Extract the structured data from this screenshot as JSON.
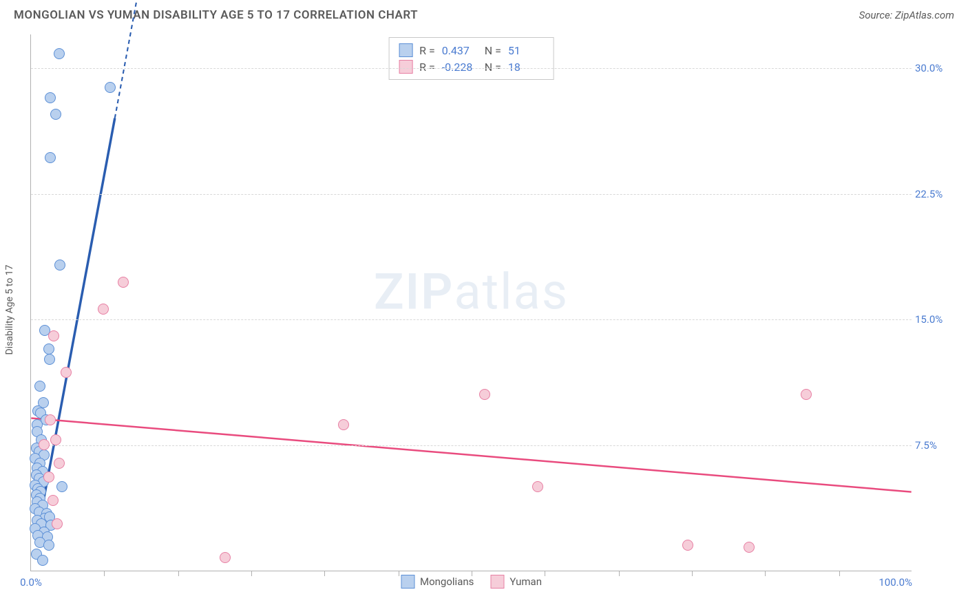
{
  "header": {
    "title": "MONGOLIAN VS YUMAN DISABILITY AGE 5 TO 17 CORRELATION CHART",
    "source": "Source: ZipAtlas.com"
  },
  "watermark": {
    "part1": "ZIP",
    "part2": "atlas"
  },
  "chart": {
    "type": "scatter",
    "ylabel": "Disability Age 5 to 17",
    "background_color": "#ffffff",
    "grid_color": "#d8d8d8",
    "axis_color": "#b0b0b0",
    "tick_label_color": "#4a7bd0",
    "xlim": [
      0,
      100
    ],
    "ylim": [
      0,
      32
    ],
    "x_ticks_major": [
      0,
      100
    ],
    "x_tick_labels": [
      "0.0%",
      "100.0%"
    ],
    "x_ticks_minor": [
      8.3,
      16.7,
      25,
      33.3,
      41.7,
      50,
      58.3,
      66.7,
      75,
      83.3,
      91.7
    ],
    "y_gridlines": [
      7.5,
      15.0,
      22.5,
      30.0
    ],
    "y_tick_labels": [
      "7.5%",
      "15.0%",
      "22.5%",
      "30.0%"
    ],
    "point_radius": 8,
    "point_border_width": 1,
    "series": [
      {
        "name": "Mongolians",
        "fill_color": "#b9d0ee",
        "stroke_color": "#5b8fd6",
        "trend_color": "#2a5db0",
        "trend_width": 3.5,
        "stats": {
          "r_label": "R =",
          "r_value": "0.437",
          "n_label": "N =",
          "n_value": "51"
        },
        "trend_line": {
          "x1": 0.8,
          "y1": 2.5,
          "x2": 9.5,
          "y2": 27.0,
          "x2_dash": 12.5,
          "y2_dash": 35.5
        },
        "points": [
          {
            "x": 3.2,
            "y": 30.8
          },
          {
            "x": 2.2,
            "y": 28.2
          },
          {
            "x": 9.0,
            "y": 28.8
          },
          {
            "x": 2.8,
            "y": 27.2
          },
          {
            "x": 2.2,
            "y": 24.6
          },
          {
            "x": 3.3,
            "y": 18.2
          },
          {
            "x": 1.6,
            "y": 14.3
          },
          {
            "x": 2.0,
            "y": 13.2
          },
          {
            "x": 2.1,
            "y": 12.6
          },
          {
            "x": 1.0,
            "y": 11.0
          },
          {
            "x": 1.4,
            "y": 10.0
          },
          {
            "x": 0.8,
            "y": 9.5
          },
          {
            "x": 1.1,
            "y": 9.4
          },
          {
            "x": 1.7,
            "y": 9.0
          },
          {
            "x": 0.7,
            "y": 8.7
          },
          {
            "x": 0.7,
            "y": 8.3
          },
          {
            "x": 1.2,
            "y": 7.8
          },
          {
            "x": 0.6,
            "y": 7.3
          },
          {
            "x": 0.9,
            "y": 7.1
          },
          {
            "x": 1.5,
            "y": 6.9
          },
          {
            "x": 0.5,
            "y": 6.7
          },
          {
            "x": 1.0,
            "y": 6.4
          },
          {
            "x": 0.7,
            "y": 6.1
          },
          {
            "x": 1.3,
            "y": 5.9
          },
          {
            "x": 0.6,
            "y": 5.7
          },
          {
            "x": 0.9,
            "y": 5.5
          },
          {
            "x": 1.4,
            "y": 5.3
          },
          {
            "x": 0.5,
            "y": 5.1
          },
          {
            "x": 0.8,
            "y": 4.9
          },
          {
            "x": 1.1,
            "y": 4.7
          },
          {
            "x": 3.5,
            "y": 5.0
          },
          {
            "x": 0.6,
            "y": 4.5
          },
          {
            "x": 1.0,
            "y": 4.3
          },
          {
            "x": 0.7,
            "y": 4.1
          },
          {
            "x": 1.3,
            "y": 3.9
          },
          {
            "x": 0.5,
            "y": 3.7
          },
          {
            "x": 0.9,
            "y": 3.5
          },
          {
            "x": 1.8,
            "y": 3.4
          },
          {
            "x": 1.6,
            "y": 3.1
          },
          {
            "x": 2.1,
            "y": 3.2
          },
          {
            "x": 0.7,
            "y": 3.0
          },
          {
            "x": 1.2,
            "y": 2.8
          },
          {
            "x": 2.3,
            "y": 2.7
          },
          {
            "x": 0.5,
            "y": 2.5
          },
          {
            "x": 1.5,
            "y": 2.3
          },
          {
            "x": 0.8,
            "y": 2.1
          },
          {
            "x": 1.9,
            "y": 2.0
          },
          {
            "x": 1.0,
            "y": 1.7
          },
          {
            "x": 2.0,
            "y": 1.5
          },
          {
            "x": 0.6,
            "y": 1.0
          },
          {
            "x": 1.3,
            "y": 0.6
          }
        ]
      },
      {
        "name": "Yuman",
        "fill_color": "#f6cdd9",
        "stroke_color": "#e77fa3",
        "trend_color": "#e94b7e",
        "trend_width": 2.5,
        "stats": {
          "r_label": "R =",
          "r_value": "-0.228",
          "n_label": "N =",
          "n_value": "18"
        },
        "trend_line": {
          "x1": 0,
          "y1": 9.1,
          "x2": 100,
          "y2": 4.7
        },
        "points": [
          {
            "x": 10.5,
            "y": 17.2
          },
          {
            "x": 8.2,
            "y": 15.6
          },
          {
            "x": 2.6,
            "y": 14.0
          },
          {
            "x": 4.0,
            "y": 11.8
          },
          {
            "x": 51.5,
            "y": 10.5
          },
          {
            "x": 88.0,
            "y": 10.5
          },
          {
            "x": 2.2,
            "y": 9.0
          },
          {
            "x": 35.5,
            "y": 8.7
          },
          {
            "x": 2.8,
            "y": 7.8
          },
          {
            "x": 1.5,
            "y": 7.5
          },
          {
            "x": 3.2,
            "y": 6.4
          },
          {
            "x": 2.0,
            "y": 5.6
          },
          {
            "x": 57.5,
            "y": 5.0
          },
          {
            "x": 2.5,
            "y": 4.2
          },
          {
            "x": 3.0,
            "y": 2.8
          },
          {
            "x": 74.5,
            "y": 1.5
          },
          {
            "x": 81.5,
            "y": 1.4
          },
          {
            "x": 22.0,
            "y": 0.8
          }
        ]
      }
    ],
    "series_legend": [
      {
        "label": "Mongolians",
        "fill": "#b9d0ee",
        "stroke": "#5b8fd6"
      },
      {
        "label": "Yuman",
        "fill": "#f6cdd9",
        "stroke": "#e77fa3"
      }
    ]
  }
}
